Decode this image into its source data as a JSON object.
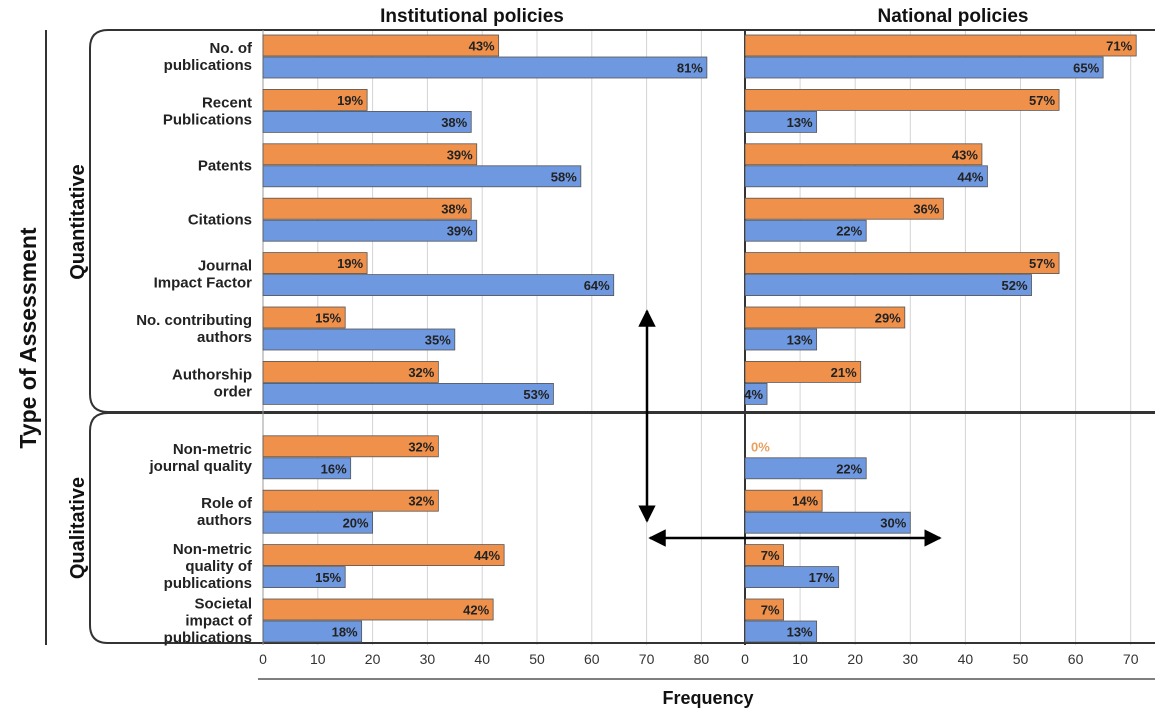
{
  "chart_data": {
    "type": "bar",
    "orientation": "horizontal",
    "panels": [
      "Institutional policies",
      "National policies"
    ],
    "xlabel": "Frequency",
    "ylabel": "Type of Assessment",
    "groups": [
      "Quantitative",
      "Qualitative"
    ],
    "categories": [
      {
        "lines": [
          "No. of",
          "publications"
        ],
        "group": "Quantitative"
      },
      {
        "lines": [
          "Recent",
          "Publications"
        ],
        "group": "Quantitative"
      },
      {
        "lines": [
          "Patents"
        ],
        "group": "Quantitative"
      },
      {
        "lines": [
          "Citations"
        ],
        "group": "Quantitative"
      },
      {
        "lines": [
          "Journal",
          "Impact Factor"
        ],
        "group": "Quantitative"
      },
      {
        "lines": [
          "No. contributing",
          "authors"
        ],
        "group": "Quantitative"
      },
      {
        "lines": [
          "Authorship",
          "order"
        ],
        "group": "Quantitative"
      },
      {
        "lines": [
          "Non-metric",
          "journal quality"
        ],
        "group": "Qualitative"
      },
      {
        "lines": [
          "Role of",
          "authors"
        ],
        "group": "Qualitative"
      },
      {
        "lines": [
          "Non-metric",
          "quality of",
          "publications"
        ],
        "group": "Qualitative"
      },
      {
        "lines": [
          "Societal",
          "impact of",
          "publications"
        ],
        "group": "Qualitative"
      }
    ],
    "series": [
      {
        "color": "#f0914b",
        "institutional": [
          43,
          19,
          39,
          38,
          19,
          15,
          32,
          32,
          32,
          44,
          42
        ],
        "national": [
          71,
          57,
          43,
          36,
          57,
          29,
          21,
          0,
          14,
          7,
          7
        ]
      },
      {
        "color": "#6e98e0",
        "institutional": [
          81,
          38,
          58,
          39,
          64,
          35,
          53,
          16,
          20,
          15,
          18
        ],
        "national": [
          65,
          13,
          44,
          22,
          52,
          13,
          4,
          22,
          30,
          17,
          13
        ]
      }
    ],
    "xlim_institutional": [
      0,
      85
    ],
    "xlim_national": [
      0,
      72
    ],
    "xticks_institutional": [
      0,
      10,
      20,
      30,
      40,
      50,
      60,
      70,
      80
    ],
    "xticks_national": [
      0,
      10,
      20,
      30,
      40,
      50,
      60,
      70
    ],
    "value_suffix": "%",
    "grid": true
  }
}
